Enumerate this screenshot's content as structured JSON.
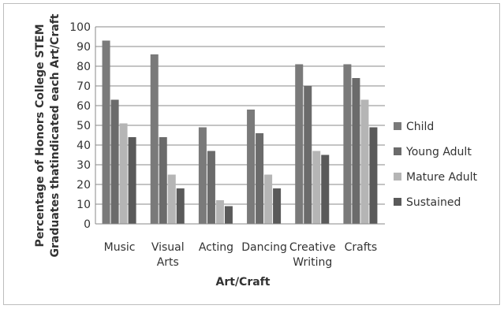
{
  "chart_data": {
    "type": "bar",
    "title": "",
    "xlabel": "Art/Craft",
    "ylabel": [
      "Percentage of Honors College STEM",
      "Graduates thatindicated each Art/Craft"
    ],
    "ylim": [
      0,
      100
    ],
    "yticks": [
      0,
      10,
      20,
      30,
      40,
      50,
      60,
      70,
      80,
      90,
      100
    ],
    "grid": true,
    "legend_position": "right",
    "categories": [
      [
        "Music"
      ],
      [
        "Visual",
        "Arts"
      ],
      [
        "Acting"
      ],
      [
        "Dancing"
      ],
      [
        "Creative",
        "Writing"
      ],
      [
        "Crafts"
      ]
    ],
    "series": [
      {
        "name": "Child",
        "color": "#7a7a7a",
        "values": [
          93,
          86,
          49,
          58,
          81,
          81
        ]
      },
      {
        "name": "Young Adult",
        "color": "#6b6b6b",
        "values": [
          63,
          44,
          37,
          46,
          70,
          74
        ]
      },
      {
        "name": "Mature Adult",
        "color": "#b5b5b5",
        "values": [
          51,
          25,
          12,
          25,
          37,
          63
        ]
      },
      {
        "name": "Sustained",
        "color": "#5a5a5a",
        "values": [
          44,
          18,
          9,
          18,
          35,
          49
        ]
      }
    ]
  }
}
